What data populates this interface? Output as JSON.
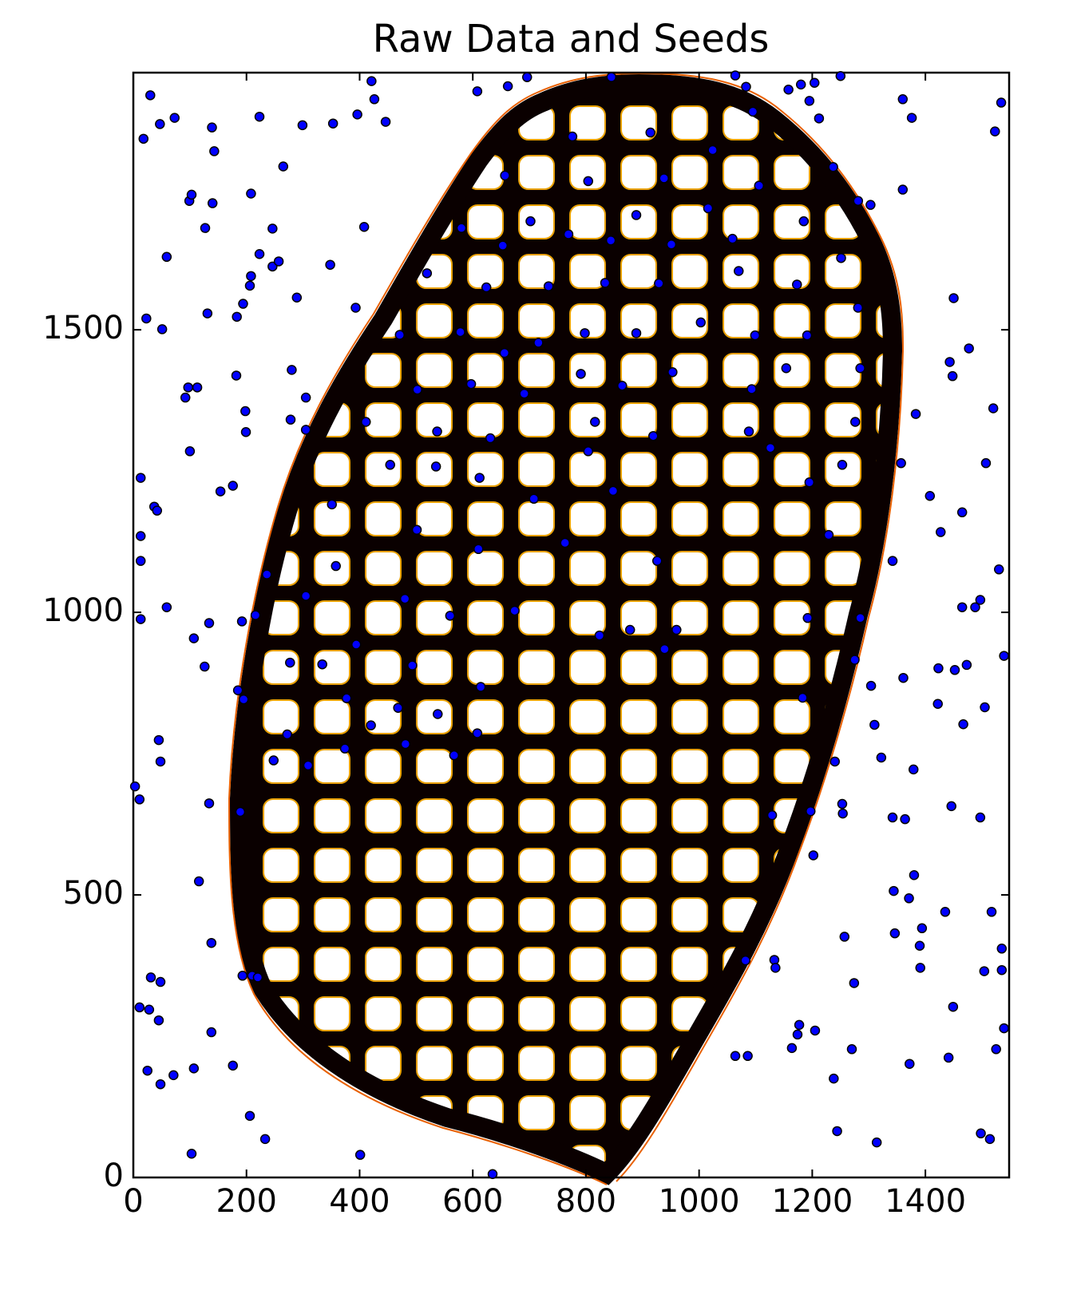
{
  "chart_data": {
    "type": "scatter",
    "title": "Raw Data and Seeds",
    "xlim": [
      0,
      1548
    ],
    "ylim": [
      0,
      1955
    ],
    "xticks": [
      0,
      200,
      400,
      600,
      800,
      1000,
      1200,
      1400
    ],
    "yticks": [
      0,
      500,
      1000,
      1500
    ],
    "color": "#0000ff",
    "x": [
      30,
      18,
      47,
      73,
      139,
      143,
      99,
      103,
      140,
      127,
      59,
      23,
      51,
      131,
      183,
      194,
      206,
      208,
      223,
      246,
      257,
      246,
      208,
      265,
      223,
      299,
      353,
      396,
      421,
      426,
      446,
      348,
      408,
      393,
      289,
      280,
      182,
      97,
      113,
      92,
      198,
      199,
      278,
      305,
      305,
      100,
      13,
      154,
      176,
      37,
      42,
      13,
      13,
      236,
      59,
      13,
      107,
      134,
      216,
      192,
      126,
      185,
      195,
      45,
      48,
      3,
      11,
      134,
      189,
      116,
      138,
      193,
      210,
      220,
      31,
      11,
      28,
      45,
      48,
      138,
      25,
      48,
      71,
      107,
      176,
      206,
      233,
      103,
      401,
      635,
      1534,
      1523,
      1360,
      1376,
      1237,
      1281,
      1303,
      1360,
      1450,
      1477,
      1443,
      1448,
      1383,
      1520,
      1507,
      1357,
      1408,
      1427,
      1465,
      1342,
      1530,
      1497,
      1465,
      1488,
      1285,
      1275,
      1361,
      1423,
      1452,
      1473,
      1539,
      1422,
      1505,
      1304,
      1310,
      1467,
      1322,
      1379,
      1240,
      1253,
      1254,
      1342,
      1364,
      1446,
      1497,
      1197,
      1202,
      1129,
      1344,
      1371,
      1380,
      1435,
      1517,
      1394,
      1390,
      1391,
      1504,
      1535,
      1535,
      1539,
      1257,
      1346,
      1449,
      1274,
      1238,
      1270,
      1372,
      1441,
      1525,
      1205,
      1177,
      1174,
      1164,
      1133,
      1135,
      1082,
      1064,
      1086,
      1244,
      1314,
      1498,
      1514,
      662,
      696,
      608,
      845,
      1064,
      1083,
      1180,
      1204,
      1250,
      1195,
      1212,
      1158,
      1095,
      776,
      914,
      1024,
      657,
      804,
      938,
      1106,
      580,
      702,
      889,
      1016,
      1185,
      1059,
      653,
      769,
      844,
      951,
      1251,
      1070,
      519,
      624,
      734,
      834,
      929,
      1173,
      1281,
      471,
      578,
      716,
      798,
      889,
      1003,
      1099,
      1191,
      656,
      791,
      953,
      1285,
      502,
      597,
      691,
      864,
      1154,
      1093,
      411,
      537,
      631,
      816,
      919,
      1276,
      1088,
      454,
      535,
      612,
      804,
      1126,
      1253,
      1195,
      351,
      708,
      848,
      501,
      610,
      763,
      1229,
      358,
      926,
      305,
      480,
      560,
      674,
      878,
      960,
      1192,
      394,
      277,
      334,
      493,
      614,
      824,
      939,
      1183,
      377,
      468,
      538,
      420,
      608,
      272,
      481,
      567,
      374,
      309,
      248
    ],
    "values": [
      1915,
      1838,
      1864,
      1875,
      1858,
      1816,
      1728,
      1739,
      1724,
      1680,
      1629,
      1520,
      1501,
      1529,
      1523,
      1546,
      1578,
      1595,
      1634,
      1612,
      1621,
      1679,
      1741,
      1789,
      1877,
      1862,
      1865,
      1881,
      1940,
      1908,
      1868,
      1615,
      1682,
      1539,
      1557,
      1429,
      1419,
      1398,
      1398,
      1380,
      1356,
      1319,
      1341,
      1380,
      1323,
      1285,
      1238,
      1214,
      1224,
      1187,
      1180,
      1135,
      1091,
      1067,
      1009,
      988,
      954,
      981,
      995,
      984,
      904,
      862,
      846,
      774,
      736,
      692,
      669,
      662,
      647,
      524,
      415,
      357,
      357,
      354,
      354,
      301,
      297,
      278,
      346,
      257,
      189,
      165,
      181,
      193,
      198,
      109,
      68,
      42,
      40,
      6,
      1902,
      1851,
      1908,
      1875,
      1788,
      1728,
      1721,
      1748,
      1556,
      1467,
      1443,
      1418,
      1351,
      1361,
      1264,
      1264,
      1206,
      1142,
      1177,
      1091,
      1076,
      1022,
      1009,
      1009,
      990,
      916,
      884,
      901,
      898,
      907,
      923,
      838,
      832,
      870,
      801,
      802,
      743,
      722,
      736,
      661,
      644,
      637,
      634,
      657,
      637,
      648,
      570,
      641,
      507,
      494,
      535,
      470,
      470,
      441,
      410,
      371,
      365,
      405,
      367,
      264,
      426,
      432,
      302,
      344,
      175,
      227,
      201,
      212,
      227,
      260,
      270,
      253,
      229,
      385,
      371,
      384,
      215,
      215,
      82,
      62,
      78,
      68,
      1931,
      1947,
      1922,
      1947,
      1950,
      1930,
      1934,
      1937,
      1949,
      1905,
      1874,
      1925,
      1886,
      1842,
      1849,
      1818,
      1773,
      1763,
      1768,
      1755,
      1680,
      1692,
      1703,
      1715,
      1692,
      1661,
      1649,
      1669,
      1658,
      1651,
      1627,
      1604,
      1600,
      1575,
      1577,
      1583,
      1582,
      1580,
      1539,
      1491,
      1496,
      1477,
      1494,
      1494,
      1513,
      1490,
      1490,
      1459,
      1422,
      1425,
      1432,
      1394,
      1404,
      1387,
      1401,
      1432,
      1395,
      1337,
      1320,
      1308,
      1337,
      1312,
      1337,
      1320,
      1261,
      1258,
      1238,
      1285,
      1291,
      1261,
      1230,
      1191,
      1201,
      1215,
      1146,
      1112,
      1123,
      1137,
      1082,
      1091,
      1029,
      1024,
      994,
      1003,
      969,
      969,
      990,
      943,
      911,
      908,
      906,
      868,
      959,
      935,
      849,
      848,
      831,
      820,
      800,
      786,
      784,
      767,
      747,
      759,
      729,
      738
    ]
  }
}
